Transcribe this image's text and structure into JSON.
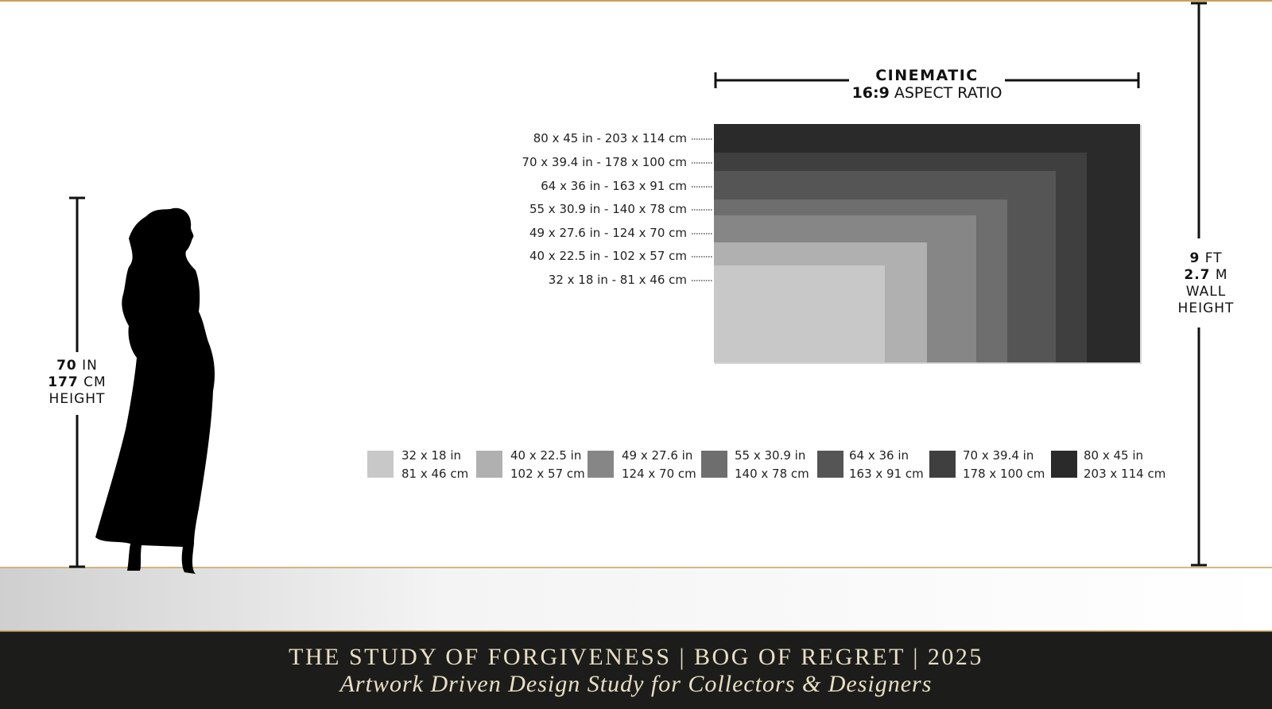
{
  "header": {
    "line1": "CINEMATIC",
    "ratio": "16:9",
    "ratio_suffix": "ASPECT RATIO"
  },
  "sizes": [
    "80 x 45 in - 203 x 114 cm",
    "70 x 39.4 in - 178 x 100 cm",
    "64 x 36 in - 163 x 91 cm",
    "55 x 30.9 in - 140 x 78 cm",
    "49 x 27.6 in - 124 x 70 cm",
    "40 x 22.5 in - 102 x 57 cm",
    "32 x 18 in - 81 x 46 cm"
  ],
  "legend": [
    {
      "in": "32 x 18 in",
      "cm": "81 x 46 cm"
    },
    {
      "in": "40 x 22.5 in",
      "cm": "102 x 57 cm"
    },
    {
      "in": "49 x 27.6 in",
      "cm": "124 x 70 cm"
    },
    {
      "in": "55 x 30.9 in",
      "cm": "140 x 78 cm"
    },
    {
      "in": "64 x 36 in",
      "cm": "163 x 91 cm"
    },
    {
      "in": "70 x 39.4 in",
      "cm": "178 x 100 cm"
    },
    {
      "in": "80 x 45 in",
      "cm": "203 x 114 cm"
    }
  ],
  "person_height": {
    "in_value": "70",
    "in_unit": "IN",
    "cm_value": "177",
    "cm_unit": "CM",
    "label": "HEIGHT"
  },
  "wall_height": {
    "ft_value": "9",
    "ft_unit": "FT",
    "m_value": "2.7",
    "m_unit": "M",
    "label1": "WALL",
    "label2": "HEIGHT"
  },
  "footer": {
    "title": "THE STUDY OF FORGIVENESS | BOG OF REGRET | 2025",
    "subtitle": "Artwork Driven Design Study for Collectors & Designers"
  }
}
